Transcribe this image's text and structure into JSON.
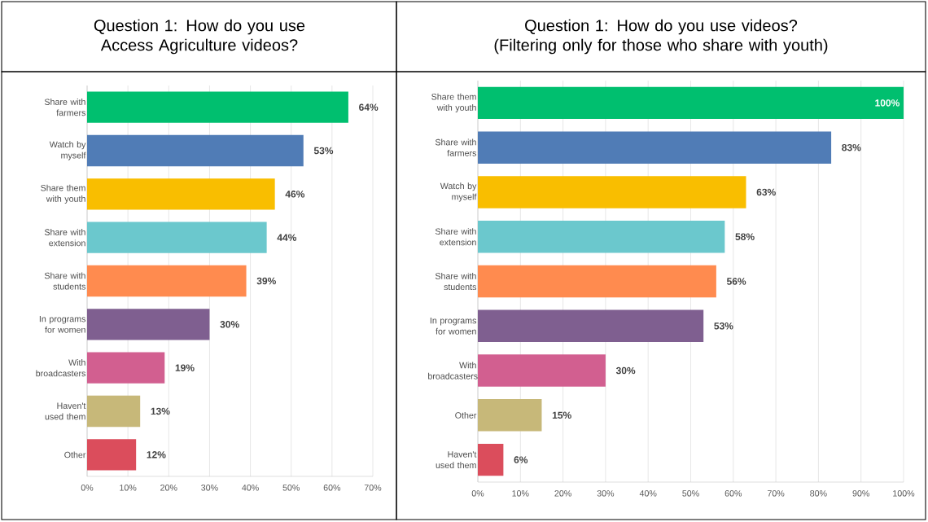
{
  "chart_data": [
    {
      "type": "bar",
      "orientation": "horizontal",
      "title": "Question 1: How do you use Access Agriculture videos?",
      "categories": [
        "Share with farmers",
        "Watch by myself",
        "Share them with youth",
        "Share with extension",
        "Share with students",
        "In programs for women",
        "With broadcasters",
        "Haven't used them",
        "Other"
      ],
      "values": [
        64,
        53,
        46,
        44,
        39,
        30,
        19,
        13,
        12
      ],
      "value_labels": [
        "64%",
        "53%",
        "46%",
        "44%",
        "39%",
        "30%",
        "19%",
        "13%",
        "12%"
      ],
      "colors": [
        "#00bf6f",
        "#507cb6",
        "#f9be00",
        "#6bc8cd",
        "#ff8b4f",
        "#7f5f90",
        "#d25f90",
        "#c7b879",
        "#db4d5c"
      ],
      "xlim": [
        0,
        70
      ],
      "xticks": [
        {
          "value": 0,
          "label": "0%"
        },
        {
          "value": 10,
          "label": "10%"
        },
        {
          "value": 20,
          "label": "20%"
        },
        {
          "value": 30,
          "label": "30%"
        },
        {
          "value": 40,
          "label": "40%"
        },
        {
          "value": 50,
          "label": "50%"
        },
        {
          "value": 60,
          "label": "60%"
        },
        {
          "value": 70,
          "label": "70%"
        }
      ],
      "grid": "x"
    },
    {
      "type": "bar",
      "orientation": "horizontal",
      "title": "Question 1: How do you use videos? (Filtering only for those who share with youth)",
      "categories": [
        "Share them with youth",
        "Share with farmers",
        "Watch by myself",
        "Share with extension",
        "Share with students",
        "In programs for women",
        "With broadcasters",
        "Other",
        "Haven't used them"
      ],
      "values": [
        100,
        83,
        63,
        58,
        56,
        53,
        30,
        15,
        6
      ],
      "value_labels": [
        "100%",
        "83%",
        "63%",
        "58%",
        "56%",
        "53%",
        "30%",
        "15%",
        "6%"
      ],
      "colors": [
        "#00bf6f",
        "#507cb6",
        "#f9be00",
        "#6bc8cd",
        "#ff8b4f",
        "#7f5f90",
        "#d25f90",
        "#c7b879",
        "#db4d5c"
      ],
      "xlim": [
        0,
        100
      ],
      "xticks": [
        {
          "value": 0,
          "label": "0%"
        },
        {
          "value": 10,
          "label": "10%"
        },
        {
          "value": 20,
          "label": "20%"
        },
        {
          "value": 30,
          "label": "30%"
        },
        {
          "value": 40,
          "label": "40%"
        },
        {
          "value": 50,
          "label": "50%"
        },
        {
          "value": 60,
          "label": "60%"
        },
        {
          "value": 70,
          "label": "70%"
        },
        {
          "value": 80,
          "label": "80%"
        },
        {
          "value": 90,
          "label": "90%"
        },
        {
          "value": 100,
          "label": "100%"
        }
      ],
      "grid": "x"
    }
  ]
}
